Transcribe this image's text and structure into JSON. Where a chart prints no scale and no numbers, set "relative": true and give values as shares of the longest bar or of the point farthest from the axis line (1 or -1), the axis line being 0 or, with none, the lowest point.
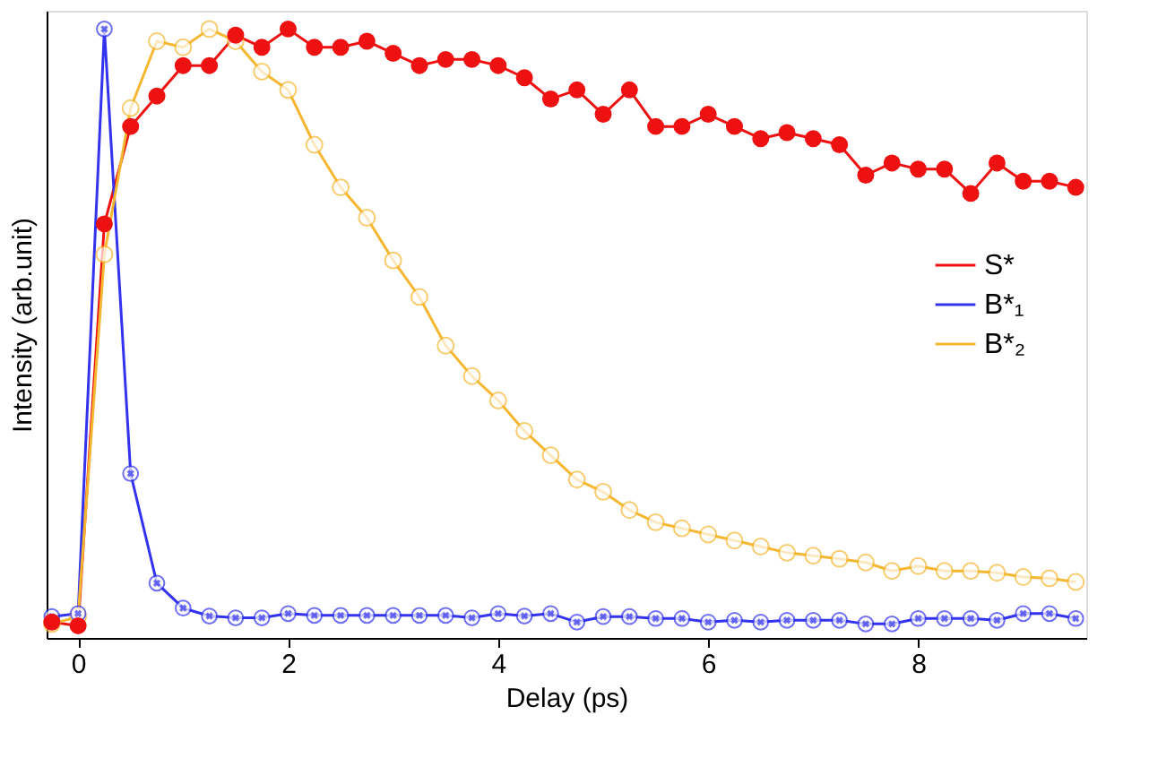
{
  "chart_data": {
    "type": "line",
    "xlabel": "Delay (ps)",
    "ylabel": "Intensity (arb.unit)",
    "relative": true,
    "x": [
      -0.25,
      0,
      0.25,
      0.5,
      0.75,
      1.0,
      1.25,
      1.5,
      1.75,
      2.0,
      2.25,
      2.5,
      2.75,
      3.0,
      3.25,
      3.5,
      3.75,
      4.0,
      4.25,
      4.5,
      4.75,
      5.0,
      5.25,
      5.5,
      5.75,
      6.0,
      6.25,
      6.5,
      6.75,
      7.0,
      7.25,
      7.5,
      7.75,
      8.0,
      8.25,
      8.5,
      8.75,
      9.0,
      9.25,
      9.5
    ],
    "xlim": [
      -0.3,
      9.6
    ],
    "xticks": [
      0,
      2,
      4,
      6,
      8
    ],
    "grid": false,
    "legend": "right",
    "line_style": "solid",
    "series": [
      {
        "name": "S*",
        "color": "#ee1111",
        "marker": "circle",
        "values": [
          0.026,
          0.02,
          0.68,
          0.84,
          0.89,
          0.94,
          0.94,
          0.99,
          0.97,
          1.0,
          0.97,
          0.97,
          0.98,
          0.96,
          0.94,
          0.95,
          0.95,
          0.94,
          0.92,
          0.885,
          0.9,
          0.86,
          0.9,
          0.84,
          0.84,
          0.86,
          0.84,
          0.82,
          0.83,
          0.82,
          0.81,
          0.76,
          0.78,
          0.77,
          0.77,
          0.73,
          0.78,
          0.75,
          0.75,
          0.74
        ]
      },
      {
        "name": "B*₁",
        "color": "#3333ee",
        "marker": "cross",
        "values": [
          0.035,
          0.04,
          1.0,
          0.27,
          0.09,
          0.049,
          0.036,
          0.033,
          0.033,
          0.04,
          0.037,
          0.037,
          0.037,
          0.037,
          0.037,
          0.037,
          0.033,
          0.04,
          0.036,
          0.04,
          0.026,
          0.035,
          0.035,
          0.032,
          0.032,
          0.026,
          0.029,
          0.026,
          0.029,
          0.029,
          0.029,
          0.023,
          0.023,
          0.032,
          0.032,
          0.032,
          0.029,
          0.04,
          0.04,
          0.032
        ]
      },
      {
        "name": "B*₂",
        "color": "#f5b731",
        "marker": "circle",
        "values": [
          0.023,
          0.035,
          0.63,
          0.87,
          0.98,
          0.97,
          1.0,
          0.98,
          0.93,
          0.9,
          0.81,
          0.74,
          0.69,
          0.62,
          0.56,
          0.48,
          0.43,
          0.39,
          0.34,
          0.3,
          0.26,
          0.24,
          0.21,
          0.19,
          0.18,
          0.17,
          0.16,
          0.15,
          0.14,
          0.135,
          0.13,
          0.124,
          0.11,
          0.118,
          0.11,
          0.11,
          0.107,
          0.1,
          0.098,
          0.092
        ]
      }
    ]
  }
}
